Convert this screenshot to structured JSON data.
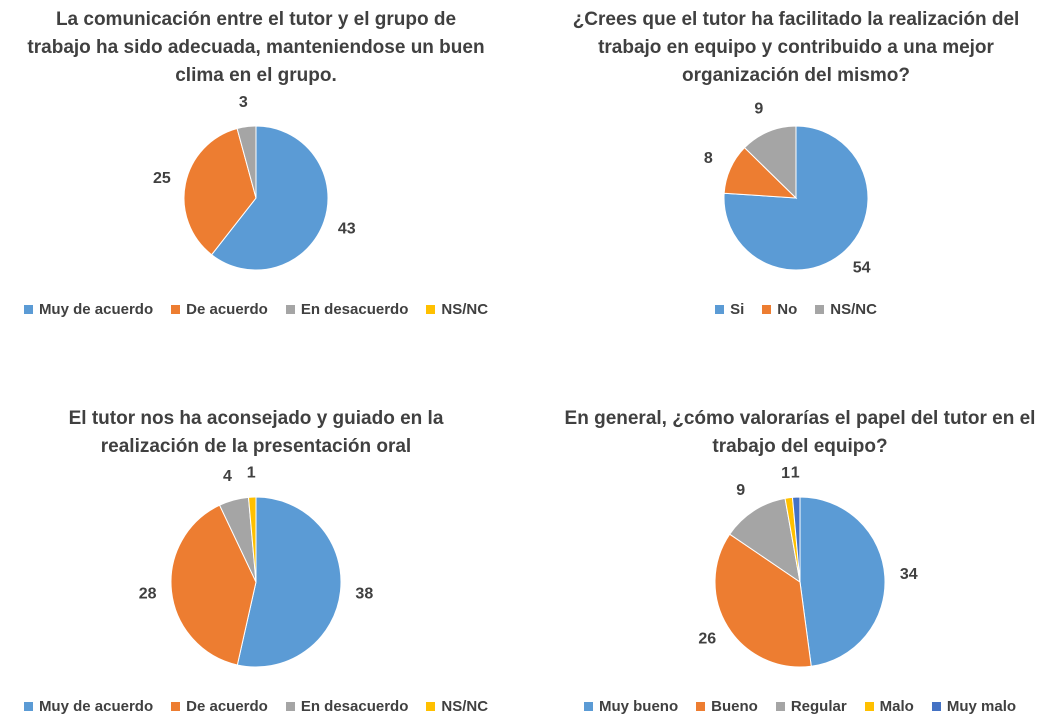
{
  "chart_data": [
    {
      "type": "pie",
      "title": "La comunicación entre el tutor y el grupo de trabajo ha sido adecuada, manteniendose un buen clima en el grupo.",
      "categories": [
        "Muy de acuerdo",
        "De acuerdo",
        "En desacuerdo",
        "NS/NC"
      ],
      "values": [
        43,
        25,
        3,
        0
      ],
      "colors": [
        "#5b9bd5",
        "#ed7d31",
        "#a5a5a5",
        "#ffc000"
      ],
      "legend": "bottom"
    },
    {
      "type": "pie",
      "title": "¿Crees que el tutor ha facilitado la realización del trabajo en equipo y contribuido a una mejor organización del mismo?",
      "categories": [
        "Si",
        "No",
        "NS/NC"
      ],
      "values": [
        54,
        8,
        9
      ],
      "colors": [
        "#5b9bd5",
        "#ed7d31",
        "#a5a5a5"
      ],
      "legend": "bottom"
    },
    {
      "type": "pie",
      "title": "El tutor nos ha aconsejado y guiado en la realización de la presentación oral",
      "categories": [
        "Muy de acuerdo",
        "De acuerdo",
        "En desacuerdo",
        "NS/NC"
      ],
      "values": [
        38,
        28,
        4,
        1
      ],
      "colors": [
        "#5b9bd5",
        "#ed7d31",
        "#a5a5a5",
        "#ffc000"
      ],
      "legend": "bottom"
    },
    {
      "type": "pie",
      "title": "En general, ¿cómo valorarías el papel del tutor en el trabajo del equipo?",
      "categories": [
        "Muy bueno",
        "Bueno",
        "Regular",
        "Malo",
        "Muy malo"
      ],
      "values": [
        34,
        26,
        9,
        1,
        1
      ],
      "colors": [
        "#5b9bd5",
        "#ed7d31",
        "#a5a5a5",
        "#ffc000",
        "#4472c4"
      ],
      "legend": "bottom"
    }
  ]
}
